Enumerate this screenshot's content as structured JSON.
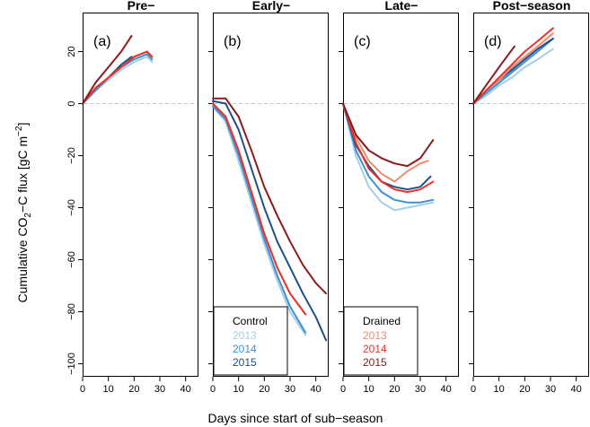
{
  "figure": {
    "ylabel_main": "Cumulative CO",
    "ylabel_sub": "2",
    "ylabel_mid": "−C flux [gC m",
    "ylabel_sup": "−2",
    "ylabel_end": "]",
    "xlabel": "Days since start of sub−season"
  },
  "colors": {
    "control_2013": "#a6cee3",
    "control_2014": "#3a8fd9",
    "control_2015": "#1b4f8a",
    "drained_2013": "#f4896b",
    "drained_2014": "#e8322b",
    "drained_2015": "#8b1a1a",
    "zero_line": "#c8c8c8"
  },
  "legends": {
    "control": {
      "title": "Control",
      "entries": [
        "2013",
        "2014",
        "2015"
      ]
    },
    "drained": {
      "title": "Drained",
      "entries": [
        "2013",
        "2014",
        "2015"
      ]
    }
  },
  "chart_data": [
    {
      "type": "line",
      "title": "Pre−",
      "panel_label": "(a)",
      "xlim": [
        0,
        45
      ],
      "ylim": [
        -105,
        35
      ],
      "xticks": [
        "0",
        "10",
        "20",
        "30",
        "40"
      ],
      "yticks": [
        "20",
        "0",
        "−20",
        "−40",
        "−60",
        "−80",
        "−100"
      ],
      "series": [
        {
          "key": "control_2013",
          "x": [
            0,
            5,
            10,
            15,
            20,
            25,
            27
          ],
          "y": [
            0,
            5,
            9,
            13,
            16,
            18,
            16
          ]
        },
        {
          "key": "control_2014",
          "x": [
            0,
            5,
            10,
            15,
            20,
            25,
            27
          ],
          "y": [
            0,
            5,
            10,
            14,
            17,
            19,
            17
          ]
        },
        {
          "key": "control_2015",
          "x": [
            0,
            5,
            10,
            15,
            19
          ],
          "y": [
            0,
            6,
            10,
            15,
            18
          ]
        },
        {
          "key": "drained_2013",
          "x": [
            0,
            5,
            10,
            15,
            20,
            25,
            27
          ],
          "y": [
            0,
            6,
            10,
            14,
            18,
            20,
            18
          ]
        },
        {
          "key": "drained_2014",
          "x": [
            0,
            5,
            10,
            15,
            20,
            25,
            27
          ],
          "y": [
            0,
            6,
            10,
            14,
            18,
            20,
            18
          ]
        },
        {
          "key": "drained_2015",
          "x": [
            0,
            5,
            10,
            15,
            19
          ],
          "y": [
            0,
            8,
            14,
            20,
            26
          ]
        }
      ]
    },
    {
      "type": "line",
      "title": "Early−",
      "panel_label": "(b)",
      "xlim": [
        0,
        45
      ],
      "ylim": [
        -105,
        35
      ],
      "xticks": [
        "0",
        "10",
        "20",
        "30",
        "40"
      ],
      "series": [
        {
          "key": "control_2013",
          "x": [
            0,
            5,
            10,
            15,
            20,
            25,
            30,
            36
          ],
          "y": [
            -1,
            -7,
            -22,
            -38,
            -54,
            -68,
            -80,
            -89
          ]
        },
        {
          "key": "control_2014",
          "x": [
            0,
            5,
            10,
            15,
            20,
            25,
            30,
            36
          ],
          "y": [
            -1,
            -6,
            -20,
            -36,
            -52,
            -66,
            -78,
            -88
          ]
        },
        {
          "key": "control_2015",
          "x": [
            0,
            5,
            10,
            15,
            20,
            25,
            30,
            35,
            40,
            44
          ],
          "y": [
            1,
            0,
            -10,
            -25,
            -40,
            -53,
            -63,
            -73,
            -82,
            -91
          ]
        },
        {
          "key": "drained_2013",
          "x": [
            0,
            5,
            10,
            15,
            20,
            25,
            30,
            36
          ],
          "y": [
            0,
            -5,
            -18,
            -34,
            -50,
            -63,
            -73,
            -81
          ]
        },
        {
          "key": "drained_2014",
          "x": [
            0,
            5,
            10,
            15,
            20,
            25,
            30,
            36
          ],
          "y": [
            0,
            -5,
            -18,
            -34,
            -50,
            -63,
            -73,
            -81
          ]
        },
        {
          "key": "drained_2015",
          "x": [
            0,
            5,
            10,
            15,
            20,
            25,
            30,
            35,
            40,
            44
          ],
          "y": [
            2,
            2,
            -5,
            -18,
            -32,
            -43,
            -53,
            -62,
            -69,
            -73
          ]
        }
      ]
    },
    {
      "type": "line",
      "title": "Late−",
      "panel_label": "(c)",
      "xlim": [
        0,
        45
      ],
      "ylim": [
        -105,
        35
      ],
      "xticks": [
        "0",
        "10",
        "20",
        "30",
        "40"
      ],
      "series": [
        {
          "key": "control_2013",
          "x": [
            0,
            5,
            10,
            15,
            20,
            25,
            30,
            35
          ],
          "y": [
            0,
            -20,
            -32,
            -38,
            -41,
            -40,
            -39,
            -38
          ]
        },
        {
          "key": "control_2014",
          "x": [
            0,
            5,
            10,
            15,
            20,
            25,
            30,
            35
          ],
          "y": [
            0,
            -18,
            -28,
            -34,
            -37,
            -38,
            -38,
            -37
          ]
        },
        {
          "key": "control_2015",
          "x": [
            0,
            5,
            10,
            15,
            20,
            25,
            30,
            34
          ],
          "y": [
            0,
            -16,
            -24,
            -30,
            -32,
            -33,
            -32,
            -28
          ]
        },
        {
          "key": "drained_2013",
          "x": [
            0,
            5,
            10,
            15,
            20,
            25,
            30,
            33
          ],
          "y": [
            0,
            -13,
            -22,
            -27,
            -30,
            -26,
            -23,
            -22
          ]
        },
        {
          "key": "drained_2014",
          "x": [
            0,
            5,
            10,
            15,
            20,
            25,
            30,
            35
          ],
          "y": [
            0,
            -15,
            -25,
            -30,
            -33,
            -34,
            -33,
            -30
          ]
        },
        {
          "key": "drained_2015",
          "x": [
            0,
            5,
            10,
            15,
            20,
            25,
            30,
            35
          ],
          "y": [
            0,
            -12,
            -18,
            -21,
            -23,
            -24,
            -21,
            -14
          ]
        }
      ]
    },
    {
      "type": "line",
      "title": "Post−season",
      "panel_label": "(d)",
      "xlim": [
        0,
        45
      ],
      "ylim": [
        -105,
        35
      ],
      "xticks": [
        "0",
        "10",
        "20",
        "30",
        "40"
      ],
      "series": [
        {
          "key": "control_2013",
          "x": [
            0,
            5,
            10,
            15,
            20,
            25,
            31
          ],
          "y": [
            0,
            3,
            7,
            10,
            14,
            17,
            21
          ]
        },
        {
          "key": "control_2014",
          "x": [
            0,
            5,
            10,
            15,
            20,
            25,
            31
          ],
          "y": [
            0,
            4,
            8,
            12,
            16,
            20,
            25
          ]
        },
        {
          "key": "control_2015",
          "x": [
            0,
            5,
            10,
            15,
            20,
            25,
            31
          ],
          "y": [
            0,
            5,
            9,
            13,
            17,
            21,
            25
          ]
        },
        {
          "key": "drained_2013",
          "x": [
            0,
            5,
            10,
            15,
            20,
            25,
            31
          ],
          "y": [
            0,
            5,
            9,
            14,
            18,
            22,
            27
          ]
        },
        {
          "key": "drained_2014",
          "x": [
            0,
            5,
            10,
            15,
            20,
            25,
            31
          ],
          "y": [
            0,
            5,
            10,
            15,
            20,
            24,
            29
          ]
        },
        {
          "key": "drained_2015",
          "x": [
            0,
            5,
            10,
            16
          ],
          "y": [
            0,
            7,
            14,
            22
          ]
        }
      ]
    }
  ]
}
